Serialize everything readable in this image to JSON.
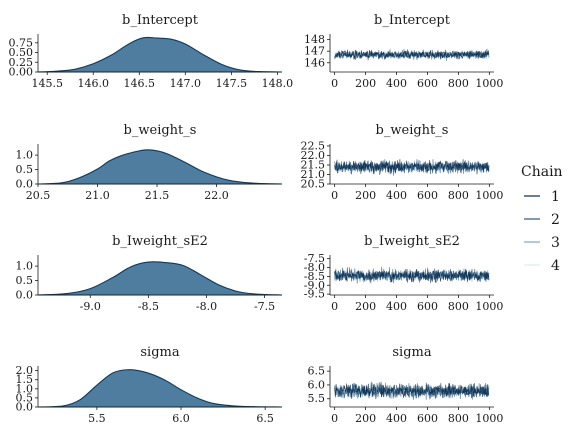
{
  "legend": {
    "title": "Chain",
    "items": [
      {
        "label": "1",
        "color": "#0b2a4a"
      },
      {
        "label": "2",
        "color": "#2a5a7e"
      },
      {
        "label": "3",
        "color": "#7ea6c7"
      },
      {
        "label": "4",
        "color": "#e1eaf2"
      }
    ]
  },
  "chart_data": [
    {
      "type": "area",
      "title": "b_Intercept",
      "xlim": [
        145.4,
        148.05
      ],
      "ylim": [
        0,
        0.95
      ],
      "xticks": [
        145.5,
        146.0,
        146.5,
        147.0,
        147.5,
        148.0
      ],
      "xtick_labels": [
        "145.5",
        "146.0",
        "146.5",
        "147.0",
        "147.5",
        "148.0"
      ],
      "yticks": [
        0.0,
        0.25,
        0.5,
        0.75
      ],
      "ytick_labels": [
        "0.00",
        "0.25",
        "0.50",
        "0.75"
      ],
      "x": [
        145.4,
        145.6,
        145.8,
        146.0,
        146.2,
        146.4,
        146.55,
        146.7,
        146.85,
        147.0,
        147.2,
        147.4,
        147.6,
        147.8,
        148.05
      ],
      "y": [
        0.0,
        0.02,
        0.07,
        0.21,
        0.44,
        0.74,
        0.88,
        0.87,
        0.84,
        0.72,
        0.44,
        0.19,
        0.05,
        0.01,
        0.0
      ]
    },
    {
      "type": "line",
      "title": "b_Intercept",
      "xlim": [
        -30,
        1030
      ],
      "ylim": [
        145.2,
        148.4
      ],
      "xticks": [
        0,
        200,
        400,
        600,
        800,
        1000
      ],
      "xtick_labels": [
        "0",
        "200",
        "400",
        "600",
        "800",
        "1000"
      ],
      "yticks": [
        146,
        147,
        148
      ],
      "ytick_labels": [
        "146",
        "147",
        "148"
      ],
      "center": 146.7,
      "spread": 0.5
    },
    {
      "type": "area",
      "title": "b_weight_s",
      "xlim": [
        20.5,
        22.55
      ],
      "ylim": [
        0,
        1.35
      ],
      "xticks": [
        20.5,
        21.0,
        21.5,
        22.0
      ],
      "xtick_labels": [
        "20.5",
        "21.0",
        "21.5",
        "22.0"
      ],
      "yticks": [
        0.0,
        0.5,
        1.0
      ],
      "ytick_labels": [
        "0.0",
        "0.5",
        "1.0"
      ],
      "x": [
        20.5,
        20.7,
        20.85,
        21.0,
        21.1,
        21.2,
        21.3,
        21.4,
        21.5,
        21.6,
        21.75,
        21.9,
        22.1,
        22.3,
        22.55
      ],
      "y": [
        0.0,
        0.04,
        0.22,
        0.52,
        0.8,
        0.98,
        1.1,
        1.18,
        1.15,
        1.02,
        0.72,
        0.4,
        0.13,
        0.03,
        0.0
      ]
    },
    {
      "type": "line",
      "title": "b_weight_s",
      "xlim": [
        -30,
        1030
      ],
      "ylim": [
        20.5,
        22.55
      ],
      "xticks": [
        0,
        200,
        400,
        600,
        800,
        1000
      ],
      "xtick_labels": [
        "0",
        "200",
        "400",
        "600",
        "800",
        "1000"
      ],
      "yticks": [
        20.5,
        21.0,
        21.5,
        22.0,
        22.5
      ],
      "ytick_labels": [
        "20.5",
        "21.0",
        "21.5",
        "22.0",
        "22.5"
      ],
      "center": 21.4,
      "spread": 0.42
    },
    {
      "type": "area",
      "title": "b_Iweight_sE2",
      "xlim": [
        -9.45,
        -7.35
      ],
      "ylim": [
        0,
        1.35
      ],
      "xticks": [
        -9.0,
        -8.5,
        -8.0,
        -7.5
      ],
      "xtick_labels": [
        "-9.0",
        "-8.5",
        "-8.0",
        "-7.5"
      ],
      "yticks": [
        0.0,
        0.5,
        1.0
      ],
      "ytick_labels": [
        "0.0",
        "0.5",
        "1.0"
      ],
      "x": [
        -9.45,
        -9.2,
        -9.0,
        -8.8,
        -8.65,
        -8.5,
        -8.35,
        -8.2,
        -8.05,
        -7.9,
        -7.75,
        -7.6,
        -7.35
      ],
      "y": [
        0.0,
        0.05,
        0.22,
        0.62,
        0.98,
        1.14,
        1.12,
        1.02,
        0.7,
        0.36,
        0.14,
        0.04,
        0.0
      ]
    },
    {
      "type": "line",
      "title": "b_Iweight_sE2",
      "xlim": [
        -30,
        1030
      ],
      "ylim": [
        -9.55,
        -7.35
      ],
      "xticks": [
        0,
        200,
        400,
        600,
        800,
        1000
      ],
      "xtick_labels": [
        "0",
        "200",
        "400",
        "600",
        "800",
        "1000"
      ],
      "yticks": [
        -9.5,
        -9.0,
        -8.5,
        -8.0,
        -7.5
      ],
      "ytick_labels": [
        "-9.5",
        "-9.0",
        "-8.5",
        "-8.0",
        "-7.5"
      ],
      "center": -8.45,
      "spread": 0.45
    },
    {
      "type": "area",
      "title": "sigma",
      "xlim": [
        5.15,
        6.6
      ],
      "ylim": [
        0,
        2.2
      ],
      "xticks": [
        5.5,
        6.0,
        6.5
      ],
      "xtick_labels": [
        "5.5",
        "6.0",
        "6.5"
      ],
      "yticks": [
        0.0,
        0.5,
        1.0,
        1.5,
        2.0
      ],
      "ytick_labels": [
        "0.0",
        "0.5",
        "1.0",
        "1.5",
        "2.0"
      ],
      "x": [
        5.15,
        5.3,
        5.4,
        5.5,
        5.6,
        5.7,
        5.8,
        5.9,
        6.0,
        6.1,
        6.2,
        6.35,
        6.6
      ],
      "y": [
        0.0,
        0.06,
        0.4,
        1.2,
        1.9,
        2.05,
        1.88,
        1.5,
        0.95,
        0.48,
        0.18,
        0.04,
        0.0
      ]
    },
    {
      "type": "line",
      "title": "sigma",
      "xlim": [
        -30,
        1030
      ],
      "ylim": [
        5.2,
        6.65
      ],
      "xticks": [
        0,
        200,
        400,
        600,
        800,
        1000
      ],
      "xtick_labels": [
        "0",
        "200",
        "400",
        "600",
        "800",
        "1000"
      ],
      "yticks": [
        5.5,
        6.0,
        6.5
      ],
      "ytick_labels": [
        "5.5",
        "6.0",
        "6.5"
      ],
      "center": 5.78,
      "spread": 0.33
    }
  ]
}
